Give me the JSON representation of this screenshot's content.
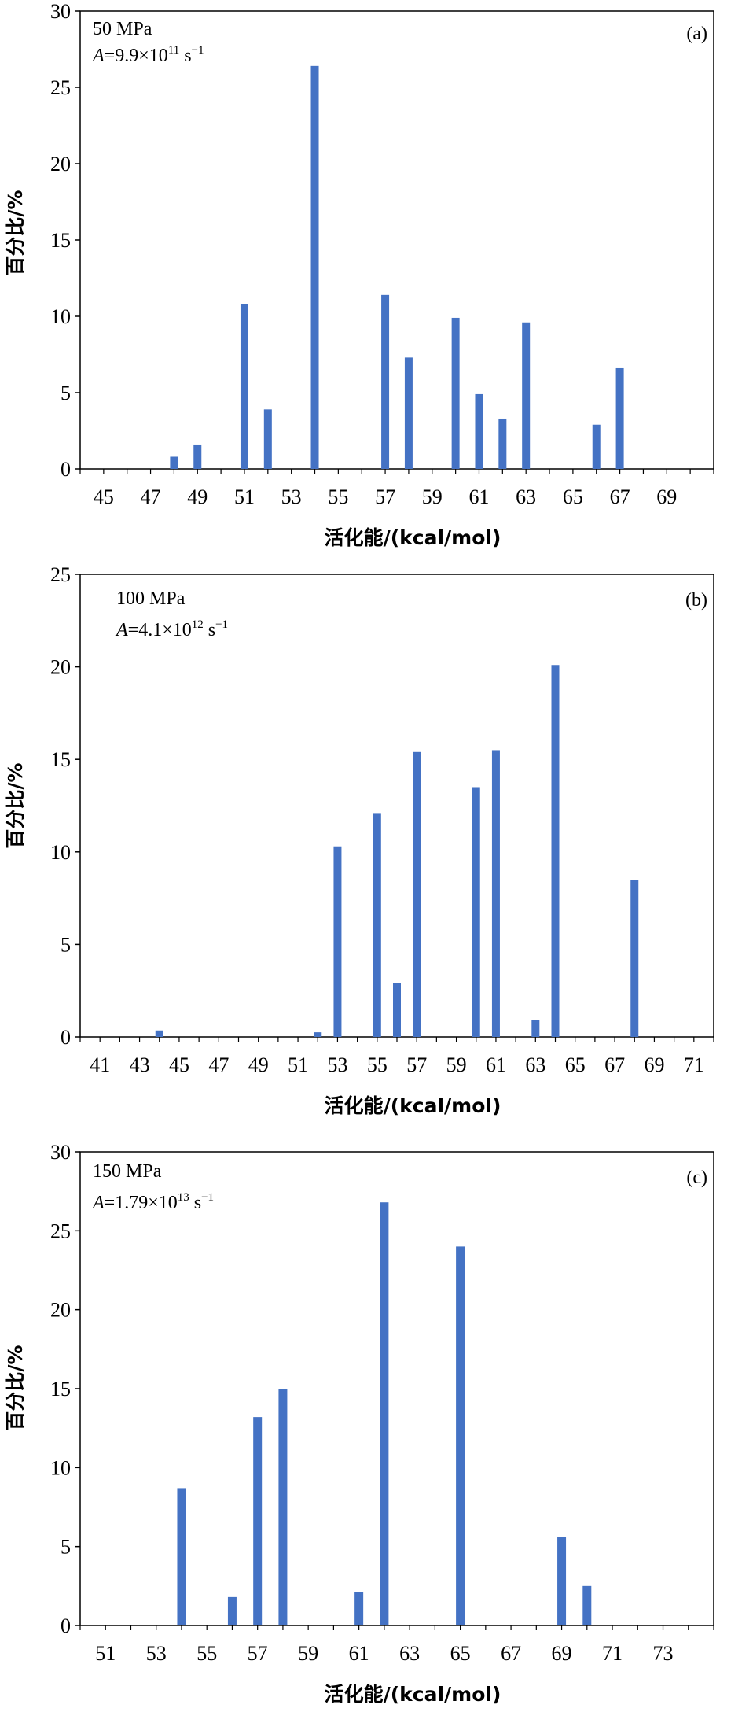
{
  "chart_data": [
    {
      "type": "bar",
      "label": "(a)",
      "pressure": "50 MPa",
      "factor": "9.9×10",
      "exponent": "11",
      "unit": "s",
      "unit_exponent": "−1",
      "xlabel": "活化能/(kcal/mol)",
      "ylabel": "百分比/%",
      "xlim": [
        44,
        71
      ],
      "ylim": [
        0,
        30
      ],
      "yticks": [
        0,
        5,
        10,
        15,
        20,
        25,
        30
      ],
      "xticks": [
        45,
        47,
        49,
        51,
        53,
        55,
        57,
        59,
        61,
        63,
        65,
        67,
        69
      ],
      "bar_color": "#4472C4",
      "x": [
        48,
        49,
        51,
        52,
        54,
        57,
        58,
        60,
        61,
        62,
        63,
        66,
        67
      ],
      "values": [
        0.8,
        1.6,
        10.8,
        3.9,
        26.4,
        11.4,
        7.3,
        9.9,
        4.9,
        3.3,
        9.6,
        2.9,
        6.6
      ]
    },
    {
      "type": "bar",
      "label": "(b)",
      "pressure": "100 MPa",
      "factor": "4.1×10",
      "exponent": "12",
      "unit": "s",
      "unit_exponent": "−1",
      "xlabel": "活化能/(kcal/mol)",
      "ylabel": "百分比/%",
      "xlim": [
        40,
        72
      ],
      "ylim": [
        0,
        25
      ],
      "yticks": [
        0,
        5,
        10,
        15,
        20,
        25
      ],
      "xticks": [
        41,
        43,
        45,
        47,
        49,
        51,
        53,
        55,
        57,
        59,
        61,
        63,
        65,
        67,
        69,
        71
      ],
      "bar_color": "#4472C4",
      "x": [
        44,
        52,
        53,
        55,
        56,
        57,
        60,
        61,
        63,
        64,
        68
      ],
      "values": [
        0.35,
        0.25,
        10.3,
        12.1,
        2.9,
        15.4,
        13.5,
        15.5,
        0.9,
        20.1,
        8.5
      ]
    },
    {
      "type": "bar",
      "label": "(c)",
      "pressure": "150 MPa",
      "factor": "1.79×10",
      "exponent": "13",
      "unit": "s",
      "unit_exponent": "−1",
      "xlabel": "活化能/(kcal/mol)",
      "ylabel": "百分比/%",
      "xlim": [
        50,
        75
      ],
      "ylim": [
        0,
        30
      ],
      "yticks": [
        0,
        5,
        10,
        15,
        20,
        25,
        30
      ],
      "xticks": [
        51,
        53,
        55,
        57,
        59,
        61,
        63,
        65,
        67,
        69,
        71,
        73
      ],
      "bar_color": "#4472C4",
      "x": [
        54,
        56,
        57,
        58,
        61,
        62,
        65,
        69,
        70
      ],
      "values": [
        8.7,
        1.8,
        13.2,
        15.0,
        2.1,
        26.8,
        24.0,
        5.6,
        2.5
      ]
    }
  ]
}
